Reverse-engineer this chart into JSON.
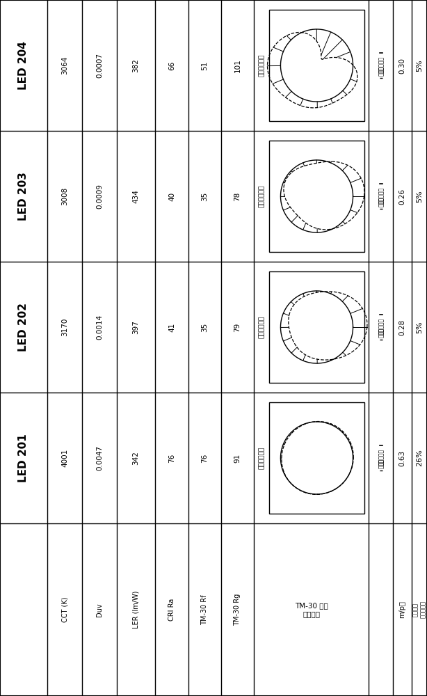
{
  "leds": [
    "LED 204",
    "LED 203",
    "LED 202",
    "LED 201"
  ],
  "led_order_bottom_to_top": [
    "LED 201",
    "LED 202",
    "LED 203",
    "LED 204"
  ],
  "values": {
    "LED 201": {
      "CCT": "4001",
      "Duv": "0.0047",
      "LER": "342",
      "CRI": "76",
      "Rf": "76",
      "Rg": "91"
    },
    "LED 202": {
      "CCT": "3170",
      "Duv": "0.0014",
      "LER": "397",
      "CRI": "41",
      "Rf": "35",
      "Rg": "79"
    },
    "LED 203": {
      "CCT": "3008",
      "Duv": "0.0009",
      "LER": "434",
      "CRI": "40",
      "Rf": "35",
      "Rg": "78"
    },
    "LED 204": {
      "CCT": "3064",
      "Duv": "0.0007",
      "LER": "382",
      "CRI": "66",
      "Rf": "51",
      "Rg": "101"
    }
  },
  "mp_ratios": {
    "LED 201": "0.63",
    "LED 202": "0.28",
    "LED 203": "0.26",
    "LED 204": "0.30"
  },
  "melanopsin_pct": {
    "LED 201": "26%",
    "LED 202": "5%",
    "LED 203": "5%",
    "LED 204": "5%"
  },
  "background": "#ffffff",
  "line_color": "#000000",
  "col_labels": [
    "CCT (K)",
    "Duv",
    "LER (lm/W)",
    "CRI Ra",
    "TM-30 Rf",
    "TM-30 Rg"
  ],
  "col_keys": [
    "CCT",
    "Duv",
    "LER",
    "CRI",
    "Rf",
    "Rg"
  ]
}
